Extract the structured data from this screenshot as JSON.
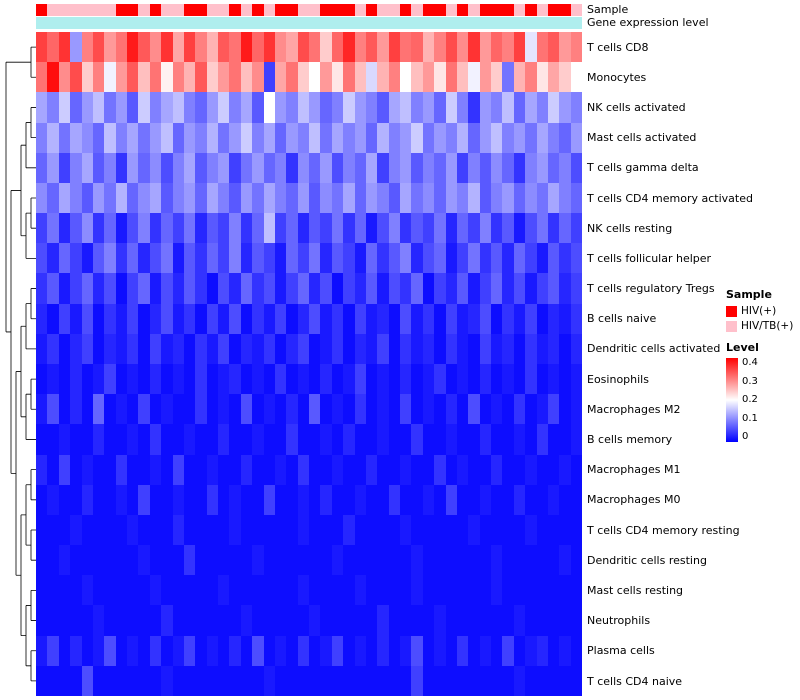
{
  "annotations": {
    "sample_label": "Sample",
    "gene_label": "Gene expression level",
    "gene_color": "#AFEEEE",
    "sample_colors": {
      "HIV(+)": "#FF0000",
      "HIV/TB(+)": "#FFC0CB"
    },
    "sample_values": [
      "HIV(+)",
      "HIV/TB(+)",
      "HIV/TB(+)",
      "HIV/TB(+)",
      "HIV/TB(+)",
      "HIV/TB(+)",
      "HIV/TB(+)",
      "HIV(+)",
      "HIV(+)",
      "HIV/TB(+)",
      "HIV(+)",
      "HIV/TB(+)",
      "HIV/TB(+)",
      "HIV(+)",
      "HIV(+)",
      "HIV/TB(+)",
      "HIV/TB(+)",
      "HIV(+)",
      "HIV/TB(+)",
      "HIV(+)",
      "HIV/TB(+)",
      "HIV(+)",
      "HIV(+)",
      "HIV/TB(+)",
      "HIV/TB(+)",
      "HIV(+)",
      "HIV(+)",
      "HIV(+)",
      "HIV/TB(+)",
      "HIV(+)",
      "HIV/TB(+)",
      "HIV/TB(+)",
      "HIV(+)",
      "HIV/TB(+)",
      "HIV(+)",
      "HIV(+)",
      "HIV/TB(+)",
      "HIV(+)",
      "HIV/TB(+)",
      "HIV(+)",
      "HIV(+)",
      "HIV(+)",
      "HIV/TB(+)",
      "HIV(+)",
      "HIV/TB(+)",
      "HIV(+)",
      "HIV(+)",
      "HIV/TB(+)"
    ]
  },
  "legend": {
    "sample_title": "Sample",
    "sample_items": [
      {
        "label": "HIV(+)",
        "color": "#FF0000"
      },
      {
        "label": "HIV/TB(+)",
        "color": "#FFC0CB"
      }
    ],
    "level_title": "Level",
    "level_ticks": [
      "0.4",
      "0.3",
      "0.2",
      "0.1",
      "0"
    ]
  },
  "chart_data": {
    "type": "heatmap",
    "rows": [
      "T cells CD8",
      "Monocytes",
      "NK cells activated",
      "Mast cells activated",
      "T cells gamma delta",
      "T cells CD4 memory activated",
      "NK cells resting",
      "T cells follicular helper",
      "T cells regulatory Tregs",
      "B cells naive",
      "Dendritic cells activated",
      "Eosinophils",
      "Macrophages M2",
      "B cells memory",
      "Macrophages M1",
      "Macrophages M0",
      "T cells CD4 memory resting",
      "Dendritic cells resting",
      "Mast cells resting",
      "Neutrophils",
      "Plasma cells",
      "T cells CD4 naive"
    ],
    "columns": 48,
    "colormap": {
      "min": 0,
      "mid": 0.2,
      "max": 0.4,
      "min_color": "#0000FF",
      "mid_color": "#FFFFFF",
      "max_color": "#FF0000"
    },
    "values": [
      [
        0.35,
        0.32,
        0.36,
        0.12,
        0.3,
        0.34,
        0.28,
        0.31,
        0.38,
        0.33,
        0.29,
        0.36,
        0.27,
        0.35,
        0.3,
        0.26,
        0.33,
        0.31,
        0.38,
        0.32,
        0.36,
        0.29,
        0.27,
        0.34,
        0.31,
        0.24,
        0.32,
        0.37,
        0.3,
        0.33,
        0.28,
        0.35,
        0.31,
        0.32,
        0.26,
        0.3,
        0.34,
        0.29,
        0.36,
        0.28,
        0.32,
        0.3,
        0.35,
        0.18,
        0.31,
        0.33,
        0.28,
        0.3
      ],
      [
        0.31,
        0.39,
        0.29,
        0.34,
        0.24,
        0.3,
        0.19,
        0.28,
        0.33,
        0.25,
        0.31,
        0.21,
        0.3,
        0.26,
        0.33,
        0.24,
        0.28,
        0.31,
        0.25,
        0.29,
        0.05,
        0.27,
        0.31,
        0.24,
        0.2,
        0.28,
        0.22,
        0.31,
        0.25,
        0.17,
        0.26,
        0.3,
        0.2,
        0.25,
        0.28,
        0.22,
        0.31,
        0.25,
        0.19,
        0.28,
        0.24,
        0.09,
        0.26,
        0.3,
        0.22,
        0.27,
        0.24,
        0.2
      ],
      [
        0.13,
        0.1,
        0.16,
        0.08,
        0.12,
        0.15,
        0.09,
        0.12,
        0.07,
        0.16,
        0.1,
        0.13,
        0.15,
        0.1,
        0.08,
        0.12,
        0.16,
        0.1,
        0.13,
        0.07,
        0.2,
        0.12,
        0.1,
        0.15,
        0.12,
        0.08,
        0.1,
        0.16,
        0.12,
        0.1,
        0.07,
        0.13,
        0.15,
        0.1,
        0.12,
        0.08,
        0.16,
        0.1,
        0.04,
        0.12,
        0.1,
        0.15,
        0.08,
        0.13,
        0.1,
        0.16,
        0.12,
        0.1
      ],
      [
        0.1,
        0.14,
        0.09,
        0.13,
        0.11,
        0.08,
        0.15,
        0.1,
        0.13,
        0.09,
        0.12,
        0.15,
        0.08,
        0.12,
        0.1,
        0.14,
        0.09,
        0.12,
        0.16,
        0.1,
        0.13,
        0.08,
        0.12,
        0.1,
        0.15,
        0.09,
        0.13,
        0.1,
        0.12,
        0.08,
        0.14,
        0.1,
        0.12,
        0.16,
        0.09,
        0.12,
        0.1,
        0.14,
        0.08,
        0.12,
        0.15,
        0.1,
        0.12,
        0.09,
        0.13,
        0.1,
        0.08,
        0.12
      ],
      [
        0.08,
        0.12,
        0.05,
        0.1,
        0.13,
        0.07,
        0.1,
        0.04,
        0.12,
        0.08,
        0.11,
        0.06,
        0.1,
        0.13,
        0.07,
        0.1,
        0.12,
        0.05,
        0.09,
        0.12,
        0.08,
        0.1,
        0.04,
        0.11,
        0.08,
        0.12,
        0.06,
        0.1,
        0.08,
        0.13,
        0.05,
        0.1,
        0.12,
        0.07,
        0.1,
        0.08,
        0.12,
        0.05,
        0.1,
        0.07,
        0.11,
        0.08,
        0.04,
        0.1,
        0.12,
        0.08,
        0.1,
        0.06
      ],
      [
        0.11,
        0.08,
        0.13,
        0.1,
        0.07,
        0.12,
        0.09,
        0.14,
        0.08,
        0.11,
        0.13,
        0.07,
        0.1,
        0.12,
        0.08,
        0.13,
        0.1,
        0.07,
        0.12,
        0.09,
        0.13,
        0.1,
        0.08,
        0.12,
        0.07,
        0.11,
        0.09,
        0.13,
        0.08,
        0.12,
        0.1,
        0.07,
        0.13,
        0.09,
        0.11,
        0.08,
        0.12,
        0.1,
        0.14,
        0.07,
        0.1,
        0.12,
        0.08,
        0.11,
        0.09,
        0.13,
        0.1,
        0.08
      ],
      [
        0.05,
        0.09,
        0.03,
        0.07,
        0.11,
        0.04,
        0.08,
        0.02,
        0.06,
        0.1,
        0.04,
        0.08,
        0.05,
        0.09,
        0.03,
        0.07,
        0.05,
        0.1,
        0.04,
        0.08,
        0.15,
        0.05,
        0.08,
        0.03,
        0.07,
        0.05,
        0.09,
        0.04,
        0.08,
        0.02,
        0.06,
        0.1,
        0.04,
        0.07,
        0.05,
        0.09,
        0.03,
        0.08,
        0.05,
        0.1,
        0.04,
        0.07,
        0.02,
        0.06,
        0.09,
        0.04,
        0.08,
        0.05
      ],
      [
        0.06,
        0.03,
        0.08,
        0.05,
        0.02,
        0.07,
        0.1,
        0.04,
        0.08,
        0.03,
        0.06,
        0.09,
        0.02,
        0.07,
        0.04,
        0.08,
        0.05,
        0.1,
        0.03,
        0.07,
        0.05,
        0.02,
        0.08,
        0.05,
        0.09,
        0.03,
        0.07,
        0.05,
        0.02,
        0.08,
        0.04,
        0.07,
        0.1,
        0.03,
        0.06,
        0.08,
        0.02,
        0.05,
        0.09,
        0.04,
        0.07,
        0.03,
        0.08,
        0.05,
        0.02,
        0.07,
        0.04,
        0.06
      ],
      [
        0.04,
        0.07,
        0.02,
        0.05,
        0.08,
        0.03,
        0.06,
        0.01,
        0.05,
        0.08,
        0.02,
        0.06,
        0.03,
        0.07,
        0.04,
        0.01,
        0.06,
        0.03,
        0.08,
        0.04,
        0.06,
        0.02,
        0.05,
        0.08,
        0.03,
        0.06,
        0.01,
        0.05,
        0.03,
        0.07,
        0.02,
        0.06,
        0.04,
        0.08,
        0.01,
        0.05,
        0.03,
        0.07,
        0.02,
        0.05,
        0.08,
        0.03,
        0.06,
        0.02,
        0.05,
        0.07,
        0.03,
        0.05
      ],
      [
        0.03,
        0.01,
        0.05,
        0.02,
        0.06,
        0.01,
        0.04,
        0.02,
        0.05,
        0.01,
        0.03,
        0.06,
        0.02,
        0.04,
        0.01,
        0.05,
        0.02,
        0.06,
        0.01,
        0.04,
        0.02,
        0.05,
        0.01,
        0.03,
        0.06,
        0.02,
        0.04,
        0.01,
        0.05,
        0.02,
        0.03,
        0.01,
        0.06,
        0.02,
        0.04,
        0.01,
        0.05,
        0.02,
        0.03,
        0.06,
        0.01,
        0.04,
        0.02,
        0.05,
        0.01,
        0.03,
        0.02,
        0.04
      ],
      [
        0.02,
        0.04,
        0.01,
        0.03,
        0.05,
        0.01,
        0.03,
        0.02,
        0.04,
        0.01,
        0.05,
        0.02,
        0.03,
        0.01,
        0.04,
        0.02,
        0.05,
        0.01,
        0.03,
        0.02,
        0.04,
        0.01,
        0.03,
        0.05,
        0.01,
        0.02,
        0.04,
        0.01,
        0.03,
        0.02,
        0.05,
        0.01,
        0.04,
        0.02,
        0.03,
        0.01,
        0.04,
        0.02,
        0.01,
        0.05,
        0.02,
        0.03,
        0.01,
        0.04,
        0.02,
        0.03,
        0.01,
        0.03
      ],
      [
        0.01,
        0.02,
        0.01,
        0.03,
        0.01,
        0.02,
        0.05,
        0.01,
        0.02,
        0.01,
        0.03,
        0.01,
        0.02,
        0.01,
        0.04,
        0.01,
        0.02,
        0.03,
        0.01,
        0.02,
        0.01,
        0.04,
        0.01,
        0.02,
        0.01,
        0.03,
        0.01,
        0.02,
        0.05,
        0.01,
        0.02,
        0.01,
        0.03,
        0.01,
        0.02,
        0.04,
        0.01,
        0.02,
        0.01,
        0.03,
        0.01,
        0.02,
        0.01,
        0.04,
        0.01,
        0.02,
        0.01,
        0.02
      ],
      [
        0.02,
        0.06,
        0.01,
        0.03,
        0.01,
        0.08,
        0.01,
        0.02,
        0.01,
        0.05,
        0.01,
        0.02,
        0.01,
        0.01,
        0.04,
        0.01,
        0.02,
        0.01,
        0.06,
        0.01,
        0.02,
        0.01,
        0.03,
        0.01,
        0.07,
        0.01,
        0.02,
        0.01,
        0.04,
        0.01,
        0.02,
        0.01,
        0.05,
        0.01,
        0.02,
        0.01,
        0.03,
        0.01,
        0.06,
        0.01,
        0.02,
        0.01,
        0.04,
        0.01,
        0.02,
        0.05,
        0.01,
        0.02
      ],
      [
        0.01,
        0.01,
        0.02,
        0.01,
        0.01,
        0.03,
        0.01,
        0.01,
        0.02,
        0.01,
        0.04,
        0.01,
        0.01,
        0.02,
        0.01,
        0.01,
        0.03,
        0.01,
        0.01,
        0.02,
        0.01,
        0.01,
        0.04,
        0.01,
        0.01,
        0.02,
        0.01,
        0.03,
        0.01,
        0.01,
        0.02,
        0.01,
        0.01,
        0.04,
        0.01,
        0.01,
        0.02,
        0.01,
        0.01,
        0.03,
        0.01,
        0.01,
        0.02,
        0.01,
        0.04,
        0.01,
        0.01,
        0.02
      ],
      [
        0.03,
        0.01,
        0.05,
        0.01,
        0.02,
        0.01,
        0.01,
        0.04,
        0.01,
        0.01,
        0.02,
        0.01,
        0.05,
        0.01,
        0.01,
        0.02,
        0.01,
        0.01,
        0.03,
        0.01,
        0.01,
        0.02,
        0.01,
        0.04,
        0.01,
        0.01,
        0.02,
        0.01,
        0.01,
        0.03,
        0.01,
        0.01,
        0.02,
        0.01,
        0.01,
        0.04,
        0.01,
        0.02,
        0.01,
        0.01,
        0.03,
        0.01,
        0.01,
        0.02,
        0.01,
        0.01,
        0.02,
        0.01
      ],
      [
        0.01,
        0.02,
        0.01,
        0.01,
        0.03,
        0.01,
        0.01,
        0.02,
        0.01,
        0.05,
        0.01,
        0.01,
        0.02,
        0.01,
        0.01,
        0.04,
        0.01,
        0.02,
        0.01,
        0.01,
        0.05,
        0.01,
        0.01,
        0.02,
        0.01,
        0.03,
        0.01,
        0.01,
        0.02,
        0.01,
        0.01,
        0.04,
        0.01,
        0.01,
        0.02,
        0.01,
        0.05,
        0.01,
        0.01,
        0.02,
        0.01,
        0.01,
        0.03,
        0.01,
        0.01,
        0.02,
        0.01,
        0.01
      ],
      [
        0.01,
        0.01,
        0.01,
        0.02,
        0.01,
        0.01,
        0.01,
        0.01,
        0.02,
        0.01,
        0.01,
        0.01,
        0.03,
        0.01,
        0.01,
        0.01,
        0.01,
        0.02,
        0.01,
        0.01,
        0.01,
        0.01,
        0.01,
        0.02,
        0.01,
        0.01,
        0.01,
        0.03,
        0.01,
        0.01,
        0.01,
        0.01,
        0.02,
        0.01,
        0.01,
        0.01,
        0.01,
        0.01,
        0.02,
        0.01,
        0.01,
        0.01,
        0.01,
        0.02,
        0.01,
        0.01,
        0.01,
        0.01
      ],
      [
        0.01,
        0.01,
        0.02,
        0.01,
        0.01,
        0.01,
        0.01,
        0.01,
        0.01,
        0.02,
        0.01,
        0.01,
        0.01,
        0.04,
        0.01,
        0.01,
        0.01,
        0.01,
        0.01,
        0.02,
        0.01,
        0.01,
        0.01,
        0.01,
        0.01,
        0.01,
        0.02,
        0.01,
        0.01,
        0.01,
        0.01,
        0.01,
        0.01,
        0.02,
        0.01,
        0.01,
        0.01,
        0.01,
        0.01,
        0.01,
        0.02,
        0.01,
        0.01,
        0.01,
        0.01,
        0.01,
        0.02,
        0.01
      ],
      [
        0.01,
        0.01,
        0.01,
        0.01,
        0.02,
        0.01,
        0.01,
        0.01,
        0.01,
        0.01,
        0.02,
        0.01,
        0.01,
        0.01,
        0.01,
        0.01,
        0.02,
        0.01,
        0.01,
        0.01,
        0.01,
        0.01,
        0.01,
        0.02,
        0.01,
        0.01,
        0.01,
        0.01,
        0.02,
        0.01,
        0.01,
        0.01,
        0.01,
        0.02,
        0.01,
        0.01,
        0.01,
        0.01,
        0.01,
        0.01,
        0.02,
        0.01,
        0.01,
        0.01,
        0.01,
        0.01,
        0.01,
        0.01
      ],
      [
        0.01,
        0.01,
        0.01,
        0.01,
        0.01,
        0.02,
        0.01,
        0.01,
        0.01,
        0.01,
        0.01,
        0.03,
        0.01,
        0.01,
        0.01,
        0.01,
        0.01,
        0.01,
        0.02,
        0.01,
        0.01,
        0.01,
        0.01,
        0.01,
        0.02,
        0.01,
        0.01,
        0.01,
        0.01,
        0.01,
        0.03,
        0.01,
        0.01,
        0.01,
        0.01,
        0.02,
        0.01,
        0.01,
        0.01,
        0.01,
        0.01,
        0.01,
        0.02,
        0.01,
        0.01,
        0.01,
        0.01,
        0.01
      ],
      [
        0.02,
        0.05,
        0.01,
        0.03,
        0.01,
        0.02,
        0.06,
        0.01,
        0.02,
        0.01,
        0.04,
        0.01,
        0.02,
        0.05,
        0.01,
        0.02,
        0.01,
        0.03,
        0.01,
        0.06,
        0.01,
        0.02,
        0.01,
        0.04,
        0.01,
        0.02,
        0.05,
        0.01,
        0.02,
        0.01,
        0.03,
        0.01,
        0.02,
        0.06,
        0.01,
        0.02,
        0.01,
        0.04,
        0.01,
        0.02,
        0.01,
        0.05,
        0.01,
        0.02,
        0.03,
        0.01,
        0.02,
        0.01
      ],
      [
        0.01,
        0.01,
        0.01,
        0.01,
        0.06,
        0.01,
        0.01,
        0.01,
        0.01,
        0.01,
        0.01,
        0.02,
        0.01,
        0.01,
        0.01,
        0.01,
        0.01,
        0.01,
        0.01,
        0.01,
        0.02,
        0.01,
        0.01,
        0.01,
        0.01,
        0.01,
        0.01,
        0.01,
        0.01,
        0.01,
        0.01,
        0.01,
        0.01,
        0.05,
        0.01,
        0.01,
        0.01,
        0.01,
        0.01,
        0.01,
        0.01,
        0.01,
        0.02,
        0.01,
        0.01,
        0.01,
        0.01,
        0.01
      ]
    ]
  }
}
